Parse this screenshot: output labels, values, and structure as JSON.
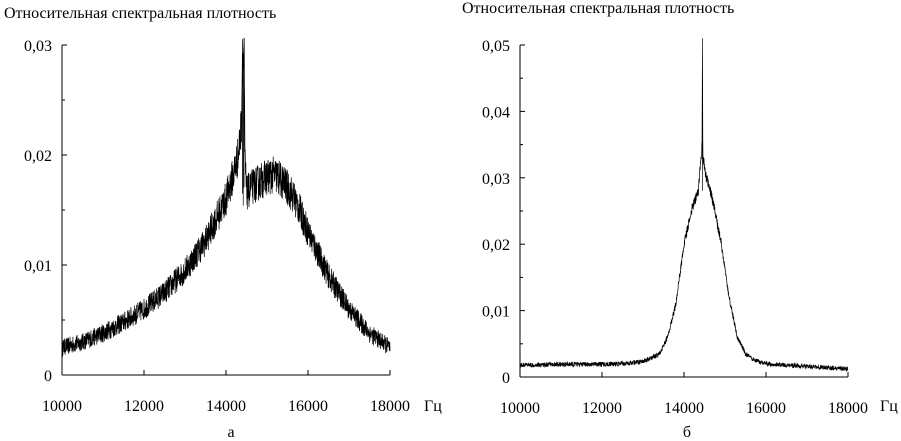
{
  "chart_data": [
    {
      "type": "line",
      "title": "Относительная спектральная плотность",
      "xlabel": "Гц",
      "caption": "а",
      "xlim": [
        10000,
        18000
      ],
      "ylim": [
        0,
        0.03
      ],
      "x_ticks": [
        10000,
        12000,
        14000,
        16000,
        18000
      ],
      "x_tick_labels": [
        "10000",
        "12000",
        "14000",
        "16000",
        "18000"
      ],
      "y_ticks": [
        0,
        0.01,
        0.02,
        0.03
      ],
      "y_tick_labels": [
        "0",
        "0,01",
        "0,02",
        "0,03"
      ],
      "series": [
        {
          "x": [
            10000,
            10500,
            11000,
            11500,
            12000,
            12500,
            13000,
            13500,
            14000,
            14200,
            14300,
            14380,
            14400,
            14420,
            14440,
            14460,
            14500,
            14600,
            14800,
            15000,
            15200,
            15400,
            15600,
            15800,
            16000,
            16500,
            17000,
            17500,
            18000
          ],
          "y": [
            0.0025,
            0.003,
            0.0038,
            0.0048,
            0.006,
            0.0075,
            0.0095,
            0.0122,
            0.016,
            0.0185,
            0.02,
            0.023,
            0.03,
            0.028,
            0.031,
            0.02,
            0.0165,
            0.017,
            0.0175,
            0.018,
            0.0182,
            0.0175,
            0.0165,
            0.015,
            0.013,
            0.009,
            0.006,
            0.0038,
            0.0025
          ],
          "noise": 0.0018
        }
      ]
    },
    {
      "type": "line",
      "title": "Относительная спектральная плотность",
      "xlabel": "Гц",
      "caption": "б",
      "xlim": [
        10000,
        18000
      ],
      "ylim": [
        0,
        0.05
      ],
      "x_ticks": [
        10000,
        12000,
        14000,
        16000,
        18000
      ],
      "x_tick_labels": [
        "10000",
        "12000",
        "14000",
        "16000",
        "18000"
      ],
      "y_ticks": [
        0,
        0.01,
        0.02,
        0.03,
        0.04,
        0.05
      ],
      "y_tick_labels": [
        "0",
        "0,01",
        "0,02",
        "0,03",
        "0,04",
        "0,05"
      ],
      "series": [
        {
          "x": [
            10000,
            11000,
            12000,
            12500,
            13000,
            13400,
            13600,
            13800,
            14000,
            14200,
            14350,
            14440,
            14450,
            14460,
            14550,
            14700,
            14900,
            15100,
            15300,
            15500,
            15700,
            16000,
            16500,
            17000,
            17500,
            18000
          ],
          "y": [
            0.0018,
            0.0019,
            0.0019,
            0.002,
            0.0023,
            0.0035,
            0.006,
            0.011,
            0.02,
            0.0255,
            0.028,
            0.035,
            0.051,
            0.033,
            0.03,
            0.0265,
            0.0205,
            0.012,
            0.006,
            0.0035,
            0.0025,
            0.002,
            0.0018,
            0.0016,
            0.0014,
            0.0012
          ],
          "noise": 0.0009
        }
      ]
    }
  ]
}
